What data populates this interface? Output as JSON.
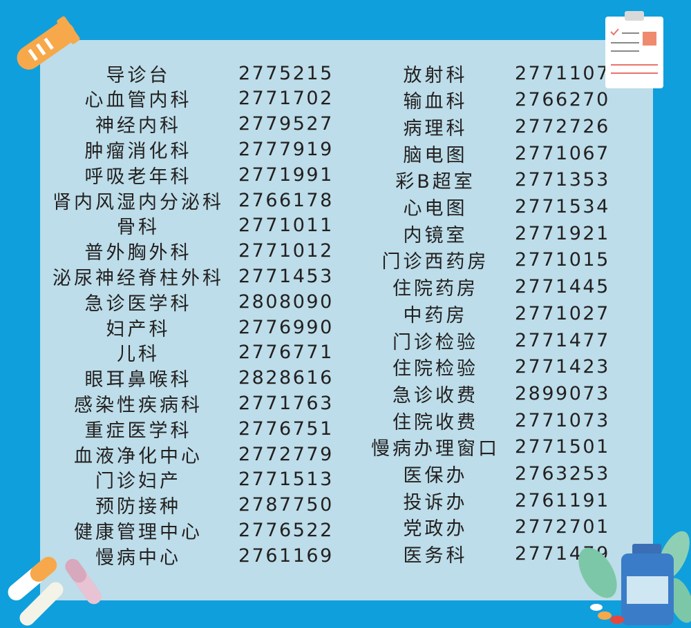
{
  "left_column": [
    {
      "name": "导诊台",
      "phone": "2775215"
    },
    {
      "name": "心血管内科",
      "phone": "2771702"
    },
    {
      "name": "神经内科",
      "phone": "2779527"
    },
    {
      "name": "肿瘤消化科",
      "phone": "2777919"
    },
    {
      "name": "呼吸老年科",
      "phone": "2771991"
    },
    {
      "name": "肾内风湿内分泌科",
      "phone": "2766178"
    },
    {
      "name": "骨科",
      "phone": "2771011"
    },
    {
      "name": "普外胸外科",
      "phone": "2771012"
    },
    {
      "name": "泌尿神经脊柱外科",
      "phone": "2771453"
    },
    {
      "name": "急诊医学科",
      "phone": "2808090"
    },
    {
      "name": "妇产科",
      "phone": "2776990"
    },
    {
      "name": "儿科",
      "phone": "2776771"
    },
    {
      "name": "眼耳鼻喉科",
      "phone": "2828616"
    },
    {
      "name": "感染性疾病科",
      "phone": "2771763"
    },
    {
      "name": "重症医学科",
      "phone": "2776751"
    },
    {
      "name": "血液净化中心",
      "phone": "2772779"
    },
    {
      "name": "门诊妇产",
      "phone": "2771513"
    },
    {
      "name": "预防接种",
      "phone": "2787750"
    },
    {
      "name": "健康管理中心",
      "phone": "2776522"
    },
    {
      "name": "慢病中心",
      "phone": "2761169"
    }
  ],
  "right_column": [
    {
      "name": "放射科",
      "phone": "2771107"
    },
    {
      "name": "输血科",
      "phone": "2766270"
    },
    {
      "name": "病理科",
      "phone": "2772726"
    },
    {
      "name": "脑电图",
      "phone": "2771067"
    },
    {
      "name": "彩B超室",
      "phone": "2771353"
    },
    {
      "name": "心电图",
      "phone": "2771534"
    },
    {
      "name": "内镜室",
      "phone": "2771921"
    },
    {
      "name": "门诊西药房",
      "phone": "2771015"
    },
    {
      "name": "住院药房",
      "phone": "2771445"
    },
    {
      "name": "中药房",
      "phone": "2771027"
    },
    {
      "name": "门诊检验",
      "phone": "2771477"
    },
    {
      "name": "住院检验",
      "phone": "2771423"
    },
    {
      "name": "急诊收费",
      "phone": "2899073"
    },
    {
      "name": "住院收费",
      "phone": "2771073"
    },
    {
      "name": "慢病办理窗口",
      "phone": "2771501"
    },
    {
      "name": "医保办",
      "phone": "2763253"
    },
    {
      "name": "投诉办",
      "phone": "2761191"
    },
    {
      "name": "党政办",
      "phone": "2772701"
    },
    {
      "name": "医务科",
      "phone": "2771479"
    }
  ],
  "decorations": [
    "test-tube-icon",
    "clipboard-icon",
    "capsule-icon",
    "medicine-bottle-icon",
    "leaf-icon"
  ],
  "colors": {
    "background": "#0f9fdc",
    "panel": "#bcdde9",
    "text": "#231f1f",
    "accent_orange": "#f7a84a"
  }
}
